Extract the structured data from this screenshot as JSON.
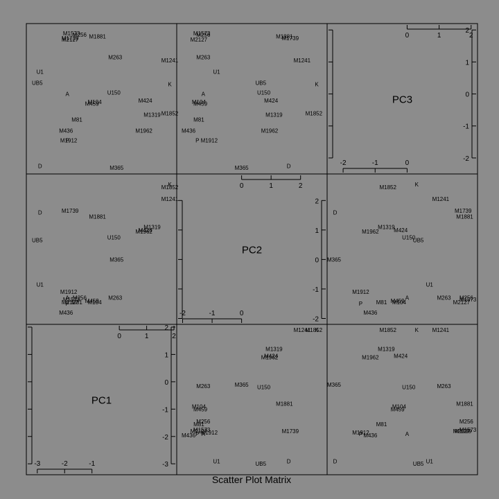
{
  "chart_data": {
    "type": "scatter",
    "title": "Scatter Plot Matrix",
    "variables": [
      "PC1",
      "PC2",
      "PC3"
    ],
    "ranges": {
      "PC1": [
        -3.4,
        2.1
      ],
      "PC2": [
        -2.2,
        2.9
      ],
      "PC3": [
        -2.5,
        2.2
      ]
    },
    "ticks": {
      "PC1": {
        "lower": [
          -3,
          -2,
          -1
        ],
        "upper": [
          0,
          1,
          2
        ]
      },
      "PC2": {
        "lower": [
          -2,
          -1,
          0
        ],
        "upper": [
          0,
          1,
          2
        ]
      },
      "PC3": {
        "lower": [
          -2,
          -1,
          0
        ],
        "upper": [
          0,
          1,
          2
        ]
      }
    },
    "grid": false,
    "points": [
      {
        "label": "M1739",
        "PC1": -1.8,
        "PC2": 1.65,
        "PC3": 1.75
      },
      {
        "label": "M1573",
        "PC1": -1.75,
        "PC2": -1.35,
        "PC3": 1.9
      },
      {
        "label": "M1881",
        "PC1": -0.8,
        "PC2": 1.45,
        "PC3": 1.8
      },
      {
        "label": "M256",
        "PC1": -1.45,
        "PC2": -1.3,
        "PC3": 1.85
      },
      {
        "label": "M2127",
        "PC1": -1.8,
        "PC2": -1.45,
        "PC3": 1.7
      },
      {
        "label": "M263",
        "PC1": -0.15,
        "PC2": -1.3,
        "PC3": 1.15
      },
      {
        "label": "M1241",
        "PC1": 1.95,
        "PC2": 2.05,
        "PC3": 1.05
      },
      {
        "label": "U1",
        "PC1": -2.9,
        "PC2": -0.85,
        "PC3": 0.7
      },
      {
        "label": "UB5",
        "PC1": -3.0,
        "PC2": 0.65,
        "PC3": 0.35
      },
      {
        "label": "K",
        "PC1": 2.1,
        "PC2": 2.55,
        "PC3": 0.3
      },
      {
        "label": "A",
        "PC1": -1.9,
        "PC2": -1.3,
        "PC3": 0.0
      },
      {
        "label": "U150",
        "PC1": -0.2,
        "PC2": 0.75,
        "PC3": 0.05
      },
      {
        "label": "M424",
        "PC1": 0.95,
        "PC2": 1.0,
        "PC3": -0.2
      },
      {
        "label": "M104",
        "PC1": -0.9,
        "PC2": -1.45,
        "PC3": -0.25
      },
      {
        "label": "M459",
        "PC1": -1.0,
        "PC2": -1.4,
        "PC3": -0.3
      },
      {
        "label": "M1852",
        "PC1": 2.05,
        "PC2": 2.45,
        "PC3": -0.6
      },
      {
        "label": "M1319",
        "PC1": 1.2,
        "PC2": 1.1,
        "PC3": -0.65
      },
      {
        "label": "M81",
        "PC1": -1.55,
        "PC2": -1.45,
        "PC3": -0.8
      },
      {
        "label": "M436",
        "PC1": -1.95,
        "PC2": -1.8,
        "PC3": -1.15
      },
      {
        "label": "M1962",
        "PC1": 0.9,
        "PC2": 0.95,
        "PC3": -1.15
      },
      {
        "label": "P",
        "PC1": -1.9,
        "PC2": -1.5,
        "PC3": -1.45
      },
      {
        "label": "M1912",
        "PC1": -1.85,
        "PC2": -1.1,
        "PC3": -1.45
      },
      {
        "label": "D",
        "PC1": -2.9,
        "PC2": 1.6,
        "PC3": -2.25
      },
      {
        "label": "M365",
        "PC1": -0.1,
        "PC2": 0.0,
        "PC3": -2.3
      }
    ]
  }
}
